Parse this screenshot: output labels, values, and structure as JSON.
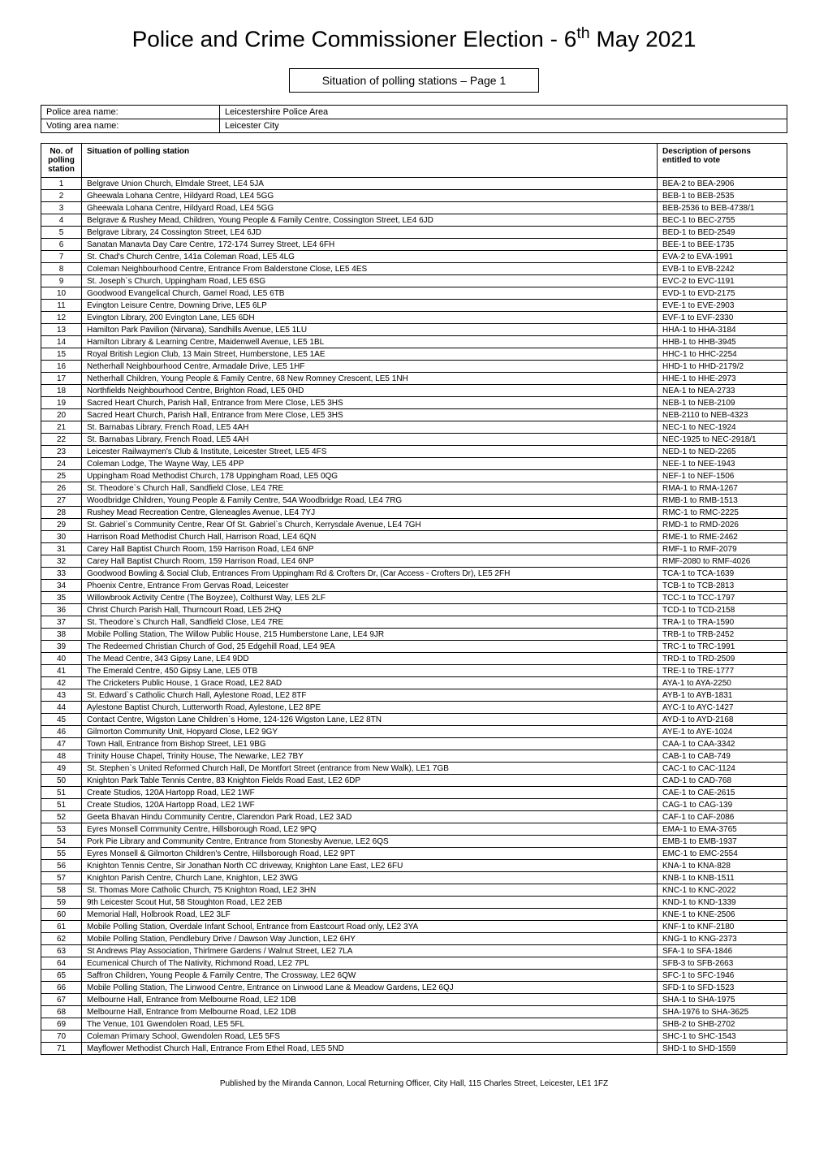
{
  "title_prefix": "Police and Crime Commissioner Election - 6",
  "title_suffix": " May 2021",
  "title_sup": "th",
  "subtitle": "Situation of polling stations – Page 1",
  "header_rows": [
    {
      "label": "Police area name:",
      "value": "Leicestershire Police Area"
    },
    {
      "label": "Voting area name:",
      "value": "Leicester City"
    }
  ],
  "columns": {
    "no": "No. of polling station",
    "situation": "Situation of polling station",
    "desc": "Description of persons entitled to vote"
  },
  "rows": [
    {
      "no": "1",
      "situation": "Belgrave Union Church, Elmdale Street, LE4 5JA",
      "desc": "BEA-2 to BEA-2906"
    },
    {
      "no": "2",
      "situation": "Gheewala Lohana Centre, Hildyard Road, LE4 5GG",
      "desc": "BEB-1 to BEB-2535"
    },
    {
      "no": "3",
      "situation": "Gheewala Lohana Centre, Hildyard Road, LE4 5GG",
      "desc": "BEB-2536 to BEB-4738/1"
    },
    {
      "no": "4",
      "situation": "Belgrave & Rushey Mead, Children, Young People & Family Centre, Cossington Street, LE4 6JD",
      "desc": "BEC-1 to BEC-2755"
    },
    {
      "no": "5",
      "situation": "Belgrave Library, 24 Cossington Street, LE4 6JD",
      "desc": "BED-1 to BED-2549"
    },
    {
      "no": "6",
      "situation": "Sanatan Manavta Day Care Centre, 172-174 Surrey Street, LE4 6FH",
      "desc": "BEE-1 to BEE-1735"
    },
    {
      "no": "7",
      "situation": "St. Chad's Church Centre, 141a Coleman Road, LE5 4LG",
      "desc": "EVA-2 to EVA-1991"
    },
    {
      "no": "8",
      "situation": "Coleman Neighbourhood Centre, Entrance From Balderstone Close, LE5 4ES",
      "desc": "EVB-1 to EVB-2242"
    },
    {
      "no": "9",
      "situation": "St. Joseph`s Church, Uppingham Road, LE5 6SG",
      "desc": "EVC-2 to EVC-1191"
    },
    {
      "no": "10",
      "situation": "Goodwood Evangelical Church, Gamel Road, LE5 6TB",
      "desc": "EVD-1 to EVD-2175"
    },
    {
      "no": "11",
      "situation": "Evington Leisure Centre, Downing Drive, LE5 6LP",
      "desc": "EVE-1 to EVE-2903"
    },
    {
      "no": "12",
      "situation": "Evington Library, 200 Evington Lane, LE5 6DH",
      "desc": "EVF-1 to EVF-2330"
    },
    {
      "no": "13",
      "situation": "Hamilton Park Pavilion (Nirvana), Sandhills Avenue, LE5 1LU",
      "desc": "HHA-1 to HHA-3184"
    },
    {
      "no": "14",
      "situation": "Hamilton Library & Learning Centre, Maidenwell Avenue, LE5 1BL",
      "desc": "HHB-1 to HHB-3945"
    },
    {
      "no": "15",
      "situation": "Royal British Legion Club, 13 Main Street, Humberstone, LE5 1AE",
      "desc": "HHC-1 to HHC-2254"
    },
    {
      "no": "16",
      "situation": "Netherhall Neighbourhood Centre, Armadale Drive, LE5 1HF",
      "desc": "HHD-1 to HHD-2179/2"
    },
    {
      "no": "17",
      "situation": "Netherhall Children, Young People & Family Centre, 68 New Romney Crescent, LE5 1NH",
      "desc": "HHE-1 to HHE-2973"
    },
    {
      "no": "18",
      "situation": "Northfields Neighbourhood Centre, Brighton Road, LE5 0HD",
      "desc": "NEA-1 to NEA-2733"
    },
    {
      "no": "19",
      "situation": "Sacred Heart Church, Parish Hall, Entrance from Mere Close, LE5 3HS",
      "desc": "NEB-1 to NEB-2109"
    },
    {
      "no": "20",
      "situation": "Sacred Heart Church, Parish Hall, Entrance from Mere Close, LE5 3HS",
      "desc": "NEB-2110 to NEB-4323"
    },
    {
      "no": "21",
      "situation": "St. Barnabas Library, French Road, LE5 4AH",
      "desc": "NEC-1 to NEC-1924"
    },
    {
      "no": "22",
      "situation": "St. Barnabas Library, French Road, LE5 4AH",
      "desc": "NEC-1925 to NEC-2918/1"
    },
    {
      "no": "23",
      "situation": "Leicester Railwaymen's Club & Institute, Leicester Street, LE5 4FS",
      "desc": "NED-1 to NED-2265"
    },
    {
      "no": "24",
      "situation": "Coleman Lodge, The Wayne Way, LE5 4PP",
      "desc": "NEE-1 to NEE-1943"
    },
    {
      "no": "25",
      "situation": "Uppingham Road Methodist Church, 178 Uppingham Road, LE5 0QG",
      "desc": "NEF-1 to NEF-1506"
    },
    {
      "no": "26",
      "situation": "St. Theodore`s Church Hall, Sandfield Close, LE4 7RE",
      "desc": "RMA-1 to RMA-1267"
    },
    {
      "no": "27",
      "situation": "Woodbridge Children, Young People & Family Centre, 54A Woodbridge Road, LE4 7RG",
      "desc": "RMB-1 to RMB-1513"
    },
    {
      "no": "28",
      "situation": "Rushey Mead Recreation Centre, Gleneagles Avenue, LE4 7YJ",
      "desc": "RMC-1 to RMC-2225"
    },
    {
      "no": "29",
      "situation": "St. Gabriel`s Community Centre, Rear Of St. Gabriel`s Church, Kerrysdale Avenue, LE4 7GH",
      "desc": "RMD-1 to RMD-2026"
    },
    {
      "no": "30",
      "situation": "Harrison Road Methodist Church Hall, Harrison Road, LE4 6QN",
      "desc": "RME-1 to RME-2462"
    },
    {
      "no": "31",
      "situation": "Carey Hall Baptist Church Room, 159 Harrison Road, LE4 6NP",
      "desc": "RMF-1 to RMF-2079"
    },
    {
      "no": "32",
      "situation": "Carey Hall Baptist Church Room, 159 Harrison Road, LE4 6NP",
      "desc": "RMF-2080 to RMF-4026"
    },
    {
      "no": "33",
      "situation": "Goodwood Bowling & Social Club, Entrances From Uppingham Rd & Crofters Dr, (Car Access - Crofters Dr), LE5 2FH",
      "desc": "TCA-1 to TCA-1639"
    },
    {
      "no": "34",
      "situation": "Phoenix Centre, Entrance From Gervas Road, Leicester",
      "desc": "TCB-1 to TCB-2813"
    },
    {
      "no": "35",
      "situation": "Willowbrook Activity Centre (The Boyzee), Colthurst Way, LE5 2LF",
      "desc": "TCC-1 to TCC-1797"
    },
    {
      "no": "36",
      "situation": "Christ Church Parish Hall, Thurncourt Road, LE5 2HQ",
      "desc": "TCD-1 to TCD-2158"
    },
    {
      "no": "37",
      "situation": "St. Theodore`s Church Hall, Sandfield Close, LE4 7RE",
      "desc": "TRA-1 to TRA-1590"
    },
    {
      "no": "38",
      "situation": "Mobile Polling Station, The Willow Public House, 215 Humberstone Lane, LE4 9JR",
      "desc": "TRB-1 to TRB-2452"
    },
    {
      "no": "39",
      "situation": "The Redeemed Christian Church of God, 25 Edgehill Road, LE4 9EA",
      "desc": "TRC-1 to TRC-1991"
    },
    {
      "no": "40",
      "situation": "The Mead Centre, 343 Gipsy Lane, LE4 9DD",
      "desc": "TRD-1 to TRD-2509"
    },
    {
      "no": "41",
      "situation": "The Emerald Centre, 450 Gipsy Lane, LE5 0TB",
      "desc": "TRE-1 to TRE-1777"
    },
    {
      "no": "42",
      "situation": "The Cricketers Public House, 1 Grace Road, LE2 8AD",
      "desc": "AYA-1 to AYA-2250"
    },
    {
      "no": "43",
      "situation": "St. Edward`s Catholic Church Hall, Aylestone Road, LE2 8TF",
      "desc": "AYB-1 to AYB-1831"
    },
    {
      "no": "44",
      "situation": "Aylestone Baptist Church, Lutterworth Road, Aylestone, LE2 8PE",
      "desc": "AYC-1 to AYC-1427"
    },
    {
      "no": "45",
      "situation": "Contact Centre, Wigston Lane Children`s Home, 124-126 Wigston Lane, LE2 8TN",
      "desc": "AYD-1 to AYD-2168"
    },
    {
      "no": "46",
      "situation": "Gilmorton Community Unit, Hopyard Close, LE2 9GY",
      "desc": "AYE-1 to AYE-1024"
    },
    {
      "no": "47",
      "situation": "Town Hall, Entrance from Bishop Street, LE1 9BG",
      "desc": "CAA-1 to CAA-3342"
    },
    {
      "no": "48",
      "situation": "Trinity House Chapel, Trinity House, The Newarke, LE2 7BY",
      "desc": "CAB-1 to CAB-749"
    },
    {
      "no": "49",
      "situation": "St. Stephen`s United Reformed Church Hall, De Montfort Street (entrance from New Walk), LE1 7GB",
      "desc": "CAC-1 to CAC-1124"
    },
    {
      "no": "50",
      "situation": "Knighton Park Table Tennis Centre, 83 Knighton Fields Road East, LE2 6DP",
      "desc": "CAD-1 to CAD-768"
    },
    {
      "no": "51",
      "situation": "Create Studios, 120A Hartopp Road, LE2 1WF",
      "desc": "CAE-1 to CAE-2615"
    },
    {
      "no": "51",
      "situation": "Create Studios, 120A Hartopp Road, LE2 1WF",
      "desc": "CAG-1 to CAG-139"
    },
    {
      "no": "52",
      "situation": "Geeta Bhavan Hindu Community Centre, Clarendon Park Road, LE2 3AD",
      "desc": "CAF-1 to CAF-2086"
    },
    {
      "no": "53",
      "situation": "Eyres Monsell Community Centre, Hillsborough Road, LE2 9PQ",
      "desc": "EMA-1 to EMA-3765"
    },
    {
      "no": "54",
      "situation": "Pork Pie Library and Community Centre, Entrance from Stonesby Avenue, LE2 6QS",
      "desc": "EMB-1 to EMB-1937"
    },
    {
      "no": "55",
      "situation": "Eyres Monsell & Gilmorton Children's Centre, Hillsborough Road, LE2 9PT",
      "desc": "EMC-1 to EMC-2554"
    },
    {
      "no": "56",
      "situation": "Knighton Tennis Centre, Sir Jonathan North CC driveway, Knighton Lane East, LE2 6FU",
      "desc": "KNA-1 to KNA-828"
    },
    {
      "no": "57",
      "situation": "Knighton Parish Centre, Church Lane, Knighton, LE2 3WG",
      "desc": "KNB-1 to KNB-1511"
    },
    {
      "no": "58",
      "situation": "St. Thomas More Catholic Church, 75 Knighton Road, LE2 3HN",
      "desc": "KNC-1 to KNC-2022"
    },
    {
      "no": "59",
      "situation": "9th Leicester Scout Hut, 58 Stoughton Road, LE2 2EB",
      "desc": "KND-1 to KND-1339"
    },
    {
      "no": "60",
      "situation": "Memorial Hall, Holbrook Road, LE2 3LF",
      "desc": "KNE-1 to KNE-2506"
    },
    {
      "no": "61",
      "situation": "Mobile Polling Station, Overdale Infant School, Entrance from Eastcourt Road only, LE2 3YA",
      "desc": "KNF-1 to KNF-2180"
    },
    {
      "no": "62",
      "situation": "Mobile Polling Station, Pendlebury Drive / Dawson Way Junction, LE2 6HY",
      "desc": "KNG-1 to KNG-2373"
    },
    {
      "no": "63",
      "situation": "St Andrews Play Association, Thirlmere Gardens / Walnut Street, LE2 7LA",
      "desc": "SFA-1 to SFA-1846"
    },
    {
      "no": "64",
      "situation": "Ecumenical Church of The Nativity, Richmond Road, LE2 7PL",
      "desc": "SFB-3 to SFB-2663"
    },
    {
      "no": "65",
      "situation": "Saffron Children, Young People & Family Centre, The Crossway, LE2 6QW",
      "desc": "SFC-1 to SFC-1946"
    },
    {
      "no": "66",
      "situation": "Mobile Polling Station, The Linwood Centre, Entrance on Linwood Lane & Meadow Gardens, LE2 6QJ",
      "desc": "SFD-1 to SFD-1523"
    },
    {
      "no": "67",
      "situation": "Melbourne Hall, Entrance from Melbourne Road, LE2 1DB",
      "desc": "SHA-1 to SHA-1975"
    },
    {
      "no": "68",
      "situation": "Melbourne Hall, Entrance from Melbourne Road, LE2 1DB",
      "desc": "SHA-1976 to SHA-3625"
    },
    {
      "no": "69",
      "situation": "The Venue, 101 Gwendolen Road, LE5 5FL",
      "desc": "SHB-2 to SHB-2702"
    },
    {
      "no": "70",
      "situation": "Coleman Primary School, Gwendolen Road, LE5 5FS",
      "desc": "SHC-1 to SHC-1543"
    },
    {
      "no": "71",
      "situation": "Mayflower Methodist Church Hall, Entrance From Ethel Road, LE5 5ND",
      "desc": "SHD-1 to SHD-1559"
    }
  ],
  "footer": "Published by the Miranda Cannon, Local Returning Officer, City Hall, 115 Charles Street, Leicester, LE1 1FZ"
}
